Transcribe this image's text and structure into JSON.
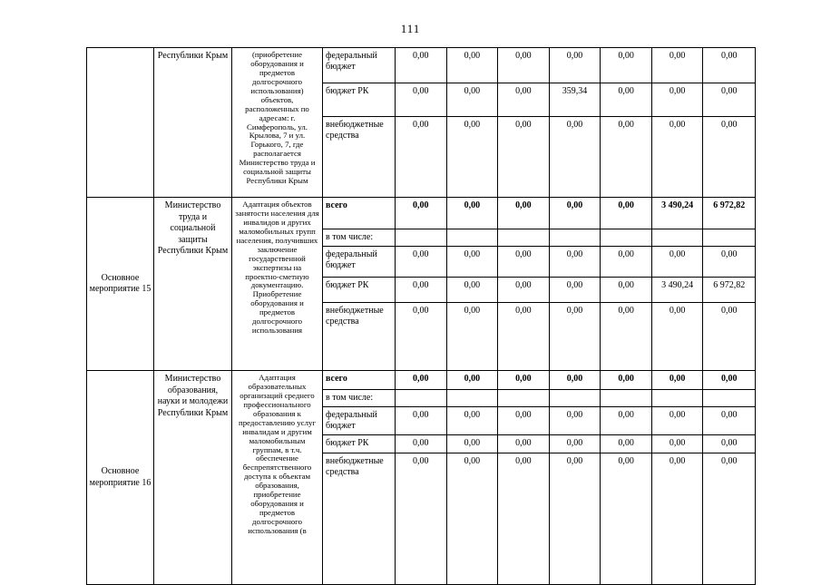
{
  "page_number": "111",
  "table": {
    "groups": [
      {
        "measure": "",
        "ministry": "Республики Крым",
        "description": "(приобретение оборудования и предметов долгосрочного использования) объектов, расположенных по адресам: г. Симферополь, ул. Крылова, 7 и ул. Горького, 7, где располагается Министерство труда и социальной защиты Республики Крым",
        "rows": [
          {
            "label": "федеральный бюджет",
            "bold": false,
            "values": [
              "0,00",
              "0,00",
              "0,00",
              "0,00",
              "0,00",
              "0,00",
              "0,00"
            ]
          },
          {
            "label": "бюджет РК",
            "bold": false,
            "values": [
              "0,00",
              "0,00",
              "0,00",
              "359,34",
              "0,00",
              "0,00",
              "0,00"
            ]
          },
          {
            "label": "внебюджетные средства",
            "bold": false,
            "values": [
              "0,00",
              "0,00",
              "0,00",
              "0,00",
              "0,00",
              "0,00",
              "0,00"
            ]
          }
        ]
      },
      {
        "measure": "Основное мероприятие 15",
        "ministry": "Министерство труда и социальной защиты Республики Крым",
        "description": "Адаптация объектов занятости населения для инвалидов и других маломобильных групп населения, получивших заключение государственной экспертизы на проектно-сметную документацию. Приобретение оборудования и предметов долгосрочного использования",
        "rows": [
          {
            "label": "всего",
            "bold": true,
            "values": [
              "0,00",
              "0,00",
              "0,00",
              "0,00",
              "0,00",
              "3 490,24",
              "6 972,82"
            ]
          },
          {
            "label": "в том числе:",
            "bold": false,
            "values": [
              "",
              "",
              "",
              "",
              "",
              "",
              ""
            ]
          },
          {
            "label": "федеральный бюджет",
            "bold": false,
            "values": [
              "0,00",
              "0,00",
              "0,00",
              "0,00",
              "0,00",
              "0,00",
              "0,00"
            ]
          },
          {
            "label": "бюджет РК",
            "bold": false,
            "values": [
              "0,00",
              "0,00",
              "0,00",
              "0,00",
              "0,00",
              "3 490,24",
              "6 972,82"
            ]
          },
          {
            "label": "внебюджетные средства",
            "bold": false,
            "values": [
              "0,00",
              "0,00",
              "0,00",
              "0,00",
              "0,00",
              "0,00",
              "0,00"
            ]
          }
        ]
      },
      {
        "measure": "Основное мероприятие 16",
        "ministry": "Министерство образования, науки и молодежи Республики Крым",
        "description": "Адаптация образовательных организаций среднего профессионального образования к предоставлению услуг инвалидам и другим маломобильным группам, в т.ч. обеспечение беспрепятственного доступа к объектам образования, приобретение оборудования и предметов долгосрочного использования (в",
        "rows": [
          {
            "label": "всего",
            "bold": true,
            "values": [
              "0,00",
              "0,00",
              "0,00",
              "0,00",
              "0,00",
              "0,00",
              "0,00"
            ]
          },
          {
            "label": "в том числе:",
            "bold": false,
            "values": [
              "",
              "",
              "",
              "",
              "",
              "",
              ""
            ]
          },
          {
            "label": "федеральный бюджет",
            "bold": false,
            "values": [
              "0,00",
              "0,00",
              "0,00",
              "0,00",
              "0,00",
              "0,00",
              "0,00"
            ]
          },
          {
            "label": "бюджет РК",
            "bold": false,
            "values": [
              "0,00",
              "0,00",
              "0,00",
              "0,00",
              "0,00",
              "0,00",
              "0,00"
            ]
          },
          {
            "label": "внебюджетные средства",
            "bold": false,
            "values": [
              "0,00",
              "0,00",
              "0,00",
              "0,00",
              "0,00",
              "0,00",
              "0,00"
            ]
          }
        ]
      }
    ]
  }
}
